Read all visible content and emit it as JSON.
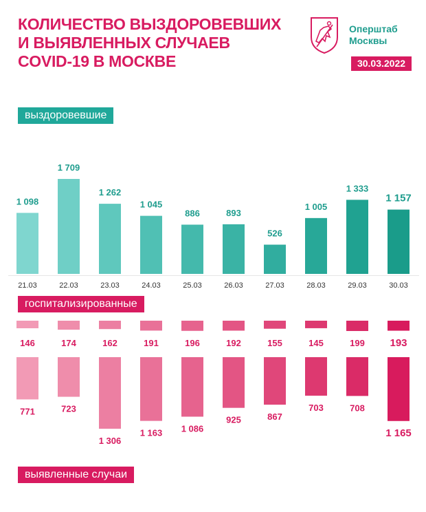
{
  "header": {
    "title_lines": [
      "КОЛИЧЕСТВО ВЫЗДОРОВЕВШИХ",
      "И ВЫЯВЛЕННЫХ СЛУЧАЕВ",
      "COVID-19 В МОСКВЕ"
    ],
    "brand_line1": "Оперштаб",
    "brand_line2": "Москвы",
    "date": "30.03.2022"
  },
  "sections": {
    "recovered": "выздоровевшие",
    "hospitalized": "госпитализированные",
    "cases": "выявленные случаи"
  },
  "colors": {
    "title": "#d81b60",
    "brand": "#1f9d8e",
    "badge": "#d81b60"
  },
  "chart_data": {
    "type": "bar",
    "categories": [
      "21.03",
      "22.03",
      "23.03",
      "24.03",
      "25.03",
      "26.03",
      "27.03",
      "28.03",
      "29.03",
      "30.03"
    ],
    "series": [
      {
        "name": "выздоровевшие",
        "values": [
          1098,
          1709,
          1262,
          1045,
          886,
          893,
          526,
          1005,
          1333,
          1157
        ],
        "labels": [
          "1 098",
          "1 709",
          "1 262",
          "1 045",
          "886",
          "893",
          "526",
          "1 005",
          "1 333",
          "1 157"
        ],
        "colors": [
          "#7fd6cf",
          "#6fcfc6",
          "#5fc8bd",
          "#50c0b4",
          "#44b9ac",
          "#3ab3a5",
          "#31ad9f",
          "#28a898",
          "#20a291",
          "#1a9c8a"
        ]
      },
      {
        "name": "госпитализированные",
        "values": [
          146,
          174,
          162,
          191,
          196,
          192,
          155,
          145,
          199,
          193
        ],
        "labels": [
          "146",
          "174",
          "162",
          "191",
          "196",
          "192",
          "155",
          "145",
          "199",
          "193"
        ],
        "colors": [
          "#f29ab5",
          "#ef8dab",
          "#ec7fa2",
          "#e97198",
          "#e6638e",
          "#e35584",
          "#e0477a",
          "#dd3970",
          "#da2b67",
          "#d81b5d"
        ]
      },
      {
        "name": "выявленные случаи",
        "values": [
          771,
          723,
          1306,
          1163,
          1086,
          925,
          867,
          703,
          708,
          1165
        ],
        "labels": [
          "771",
          "723",
          "1 306",
          "1 163",
          "1 086",
          "925",
          "867",
          "703",
          "708",
          "1 165"
        ],
        "colors": [
          "#f29ab5",
          "#ef8dab",
          "#ec7fa2",
          "#e97198",
          "#e6638e",
          "#e35584",
          "#e0477a",
          "#dd3970",
          "#da2b67",
          "#d81b5d"
        ]
      }
    ],
    "title": "Количество выздоровевших и выявленных случаев COVID-19 в Москве",
    "xlabel": "",
    "ylabel": ""
  }
}
